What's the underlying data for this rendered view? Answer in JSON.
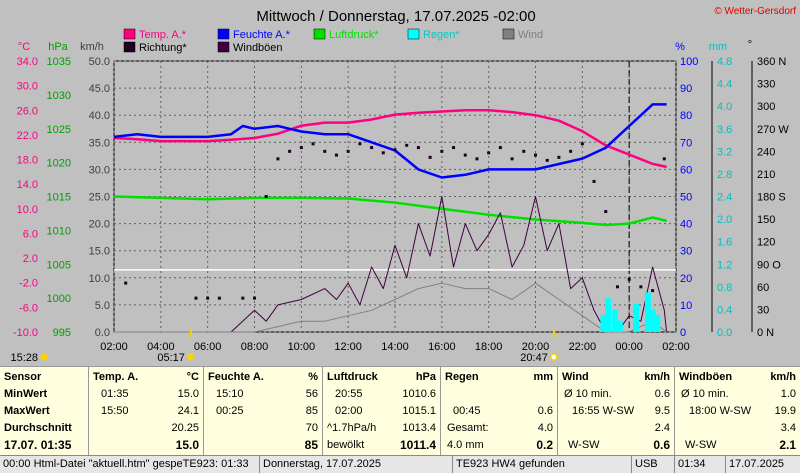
{
  "chart_data": {
    "type": "line",
    "title": "Mittwoch / Donnerstag, 17.07.2025  -02:00",
    "copyright": "© Wetter-Gersdorf",
    "x_ticks": [
      "02:00",
      "04:00",
      "06:00",
      "08:00",
      "10:00",
      "12:00",
      "14:00",
      "16:00",
      "18:00",
      "20:00",
      "22:00",
      "00:00",
      "02:00"
    ],
    "x_range_hours": [
      0,
      24
    ],
    "sunrise": "05:17",
    "sunset": "20:47",
    "time_left_label": "15:28",
    "legend": [
      {
        "name": "Temp. A.*",
        "color": "#ff0080"
      },
      {
        "name": "Feuchte A.*",
        "color": "#0000ff"
      },
      {
        "name": "Luftdruck*",
        "color": "#00e000"
      },
      {
        "name": "Regen*",
        "color": "#00ffff"
      },
      {
        "name": "Wind",
        "color": "#808080"
      },
      {
        "name": "Richtung*",
        "color": "#200020"
      },
      {
        "name": "Windböen",
        "color": "#400040"
      }
    ],
    "axes": {
      "temp": {
        "unit": "°C",
        "ticks": [
          "34.0",
          "30.0",
          "26.0",
          "22.0",
          "18.0",
          "14.0",
          "10.0",
          "6.0",
          "2.0",
          "-2.0",
          "-6.0",
          "-10.0"
        ],
        "range": [
          -10,
          34
        ],
        "color": "#ff0080"
      },
      "pressure": {
        "unit": "hPa",
        "ticks": [
          "1035",
          "1030",
          "1025",
          "1020",
          "1015",
          "1010",
          "1005",
          "1000",
          "995"
        ],
        "range": [
          995,
          1035
        ],
        "color": "#00a000"
      },
      "wind": {
        "unit": "km/h",
        "ticks": [
          "50.0",
          "45.0",
          "40.0",
          "35.0",
          "30.0",
          "25.0",
          "20.0",
          "15.0",
          "10.0",
          "5.0",
          "0.0"
        ],
        "range": [
          0,
          50
        ],
        "color": "#404040"
      },
      "humidity": {
        "unit": "%",
        "ticks": [
          "100",
          "90",
          "80",
          "70",
          "60",
          "50",
          "40",
          "30",
          "20",
          "10",
          "0"
        ],
        "range": [
          0,
          100
        ],
        "color": "#0000ff"
      },
      "rain": {
        "unit": "mm",
        "ticks": [
          "4.8",
          "4.4",
          "4.0",
          "3.6",
          "3.2",
          "2.8",
          "2.4",
          "2.0",
          "1.6",
          "1.2",
          "0.8",
          "0.4",
          "0.0"
        ],
        "range": [
          0,
          4.8
        ],
        "color": "#00c0c0"
      },
      "direction": {
        "unit": "°",
        "ticks": [
          "360 N",
          "330",
          "300",
          "270 W",
          "240",
          "210",
          "180 S",
          "150",
          "120",
          "90 O",
          "60",
          "30",
          "0 N"
        ],
        "range": [
          0,
          360
        ],
        "color": "#000000"
      }
    },
    "series": [
      {
        "name": "Temp. A.*",
        "color": "#ff0080",
        "axis": "temp",
        "x": [
          0,
          1,
          2,
          3,
          4,
          5,
          6,
          7,
          8,
          9,
          10,
          11,
          12,
          13,
          14,
          15,
          16,
          17,
          18,
          19,
          20,
          21,
          22,
          23,
          23.6
        ],
        "y": [
          21.5,
          21.3,
          21.0,
          21.0,
          21.0,
          21.2,
          21.5,
          22.2,
          23.5,
          24.0,
          24.0,
          24.5,
          25.3,
          25.6,
          25.8,
          26.0,
          26.0,
          25.7,
          25.2,
          24.3,
          22.6,
          20.3,
          18.8,
          17.3,
          16.8
        ]
      },
      {
        "name": "Feuchte A.*",
        "color": "#0000ff",
        "axis": "humidity",
        "x": [
          0,
          1,
          2,
          3,
          4,
          5,
          5.5,
          6,
          7,
          7.5,
          8,
          9,
          10,
          11,
          12,
          13,
          14,
          15,
          16,
          17,
          18,
          19,
          20,
          21,
          22,
          23,
          23.6
        ],
        "y": [
          72,
          73,
          72,
          72,
          72,
          73,
          76,
          75,
          76,
          75,
          74,
          73,
          73,
          70,
          67,
          60,
          57,
          58,
          60,
          60,
          60,
          62,
          64,
          68,
          76,
          84,
          84
        ]
      },
      {
        "name": "Luftdruck*",
        "color": "#00e000",
        "axis": "pressure",
        "x": [
          0,
          2,
          4,
          6,
          8,
          10,
          12,
          14,
          16,
          18,
          20,
          21,
          22,
          23,
          23.6
        ],
        "y": [
          1015.0,
          1014.8,
          1014.6,
          1014.8,
          1014.8,
          1014.7,
          1014.1,
          1013.2,
          1012.3,
          1011.6,
          1011.1,
          1010.8,
          1011.0,
          1011.9,
          1011.4
        ]
      },
      {
        "name": "Windböen",
        "color": "#400040",
        "axis": "wind",
        "x": [
          0,
          2,
          3,
          4,
          5,
          6,
          6.5,
          7,
          8,
          9,
          9.5,
          10,
          10.5,
          11,
          11.5,
          12,
          12.5,
          13,
          13.5,
          14,
          14.5,
          15,
          15.5,
          16,
          16.5,
          17,
          17.5,
          18,
          18.5,
          19,
          19.5,
          20,
          20.5,
          21,
          21.5,
          22,
          22.5,
          23,
          23.5,
          23.6
        ],
        "y": [
          0,
          0,
          0,
          0,
          0,
          4,
          2,
          5,
          6,
          8,
          6,
          9,
          5,
          12,
          8,
          16,
          10,
          20,
          14,
          25,
          12,
          20,
          15,
          18,
          22,
          12,
          16,
          25,
          15,
          20,
          8,
          10,
          4,
          0,
          0,
          3,
          2,
          12,
          4,
          0
        ]
      },
      {
        "name": "Wind",
        "color": "#808080",
        "axis": "wind",
        "x": [
          0,
          6,
          7,
          8,
          9,
          10,
          11,
          12,
          13,
          14,
          15,
          16,
          17,
          18,
          19,
          20,
          21,
          22,
          23,
          23.6
        ],
        "y": [
          0,
          0,
          1,
          2,
          2,
          3,
          4,
          6,
          8,
          9,
          8,
          8,
          6,
          9,
          6,
          3,
          0,
          0,
          2,
          0
        ]
      },
      {
        "name": "Regen*",
        "color": "#00ffff",
        "axis": "rain",
        "x": [
          20.9,
          21.1,
          21.4,
          21.6,
          22.3,
          22.8,
          23.0,
          23.2
        ],
        "y": [
          0.3,
          0.6,
          0.4,
          0.2,
          0.5,
          0.7,
          0.4,
          0.3
        ]
      },
      {
        "name": "Richtung*",
        "color": "#200020",
        "axis": "direction",
        "x": [
          0.5,
          3.5,
          4.0,
          4.5,
          5.5,
          6.0,
          6.5,
          7.0,
          7.5,
          8.0,
          8.5,
          9.0,
          9.5,
          10.0,
          10.5,
          11.0,
          11.5,
          12.0,
          12.5,
          13.0,
          13.5,
          14.0,
          14.5,
          15.0,
          15.5,
          16.0,
          16.5,
          17.0,
          17.5,
          18.0,
          18.5,
          19.0,
          19.5,
          20.0,
          20.5,
          21.0,
          21.5,
          22.0,
          22.5,
          23.0,
          23.5
        ],
        "y": [
          65,
          45,
          45,
          45,
          45,
          45,
          180,
          230,
          240,
          245,
          250,
          240,
          235,
          240,
          250,
          245,
          238,
          242,
          248,
          245,
          232,
          240,
          245,
          235,
          230,
          238,
          245,
          230,
          240,
          235,
          228,
          232,
          240,
          250,
          200,
          160,
          60,
          70,
          60,
          55,
          230
        ]
      }
    ],
    "gridlines": true,
    "legend_position": "top"
  },
  "table": {
    "sensor": {
      "head": "Sensor",
      "rows": [
        "MinWert",
        "MaxWert",
        "Durchschnitt",
        "17.07. 01:35"
      ]
    },
    "temp": {
      "head": "Temp. A.",
      "unit": "°C",
      "rows": [
        [
          "01:35",
          "15.0"
        ],
        [
          "15:50",
          "24.1"
        ],
        [
          "",
          "20.25"
        ],
        [
          "",
          "15.0"
        ]
      ]
    },
    "humidity": {
      "head": "Feuchte A.",
      "unit": "%",
      "rows": [
        [
          "15:10",
          "56"
        ],
        [
          "00:25",
          "85"
        ],
        [
          "",
          "70"
        ],
        [
          "",
          "85"
        ]
      ]
    },
    "pressure": {
      "head": "Luftdruck",
      "unit": "hPa",
      "rows": [
        [
          "20:55",
          "1010.6"
        ],
        [
          "02:00",
          "1015.1"
        ],
        [
          "^1.7hPa/h",
          "1013.4"
        ],
        [
          "bewölkt",
          "1011.4"
        ]
      ]
    },
    "rain": {
      "head": "Regen",
      "unit": "mm",
      "rows": [
        [
          "",
          ""
        ],
        [
          "00:45",
          "0.6"
        ],
        [
          "Gesamt:",
          "4.0"
        ],
        [
          "4.0 mm",
          "0.2"
        ]
      ]
    },
    "wind": {
      "head": "Wind",
      "unit": "km/h",
      "rows": [
        [
          "Ø 10 min.",
          "0.6"
        ],
        [
          "16:55   W-SW",
          "9.5"
        ],
        [
          "",
          "2.4"
        ],
        [
          "W-SW",
          "0.6"
        ]
      ]
    },
    "gusts": {
      "head": "Windböen",
      "unit": "km/h",
      "rows": [
        [
          "Ø 10 min.",
          "1.0"
        ],
        [
          "18:00   W-SW",
          "19.9"
        ],
        [
          "",
          "3.4"
        ],
        [
          "W-SW",
          "2.1"
        ]
      ]
    }
  },
  "status": {
    "f1": "00:00  Html-Datei  \"aktuell.htm\"  gespeTE923: 01:33",
    "f2": "Donnerstag, 17.07.2025",
    "f3": "TE923 HW4 gefunden",
    "f4": "USB",
    "f5": "01:34",
    "f6": "17.07.2025"
  }
}
